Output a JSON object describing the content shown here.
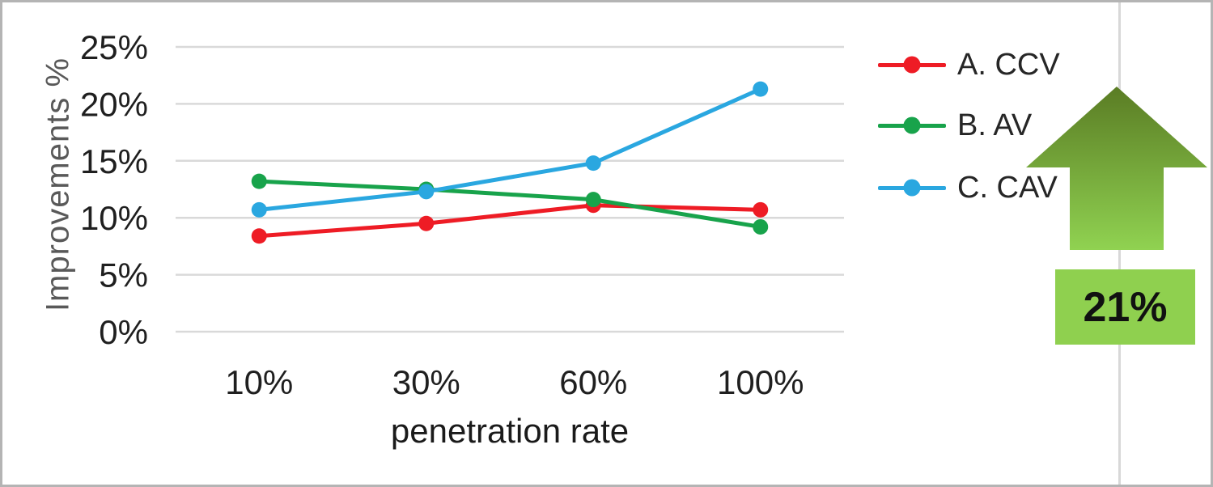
{
  "chart_data": {
    "type": "line",
    "title": "",
    "xlabel": "penetration rate",
    "ylabel": "Improvements %",
    "categories": [
      "10%",
      "30%",
      "60%",
      "100%"
    ],
    "y_ticks": [
      0,
      5,
      10,
      15,
      20,
      25
    ],
    "y_tick_labels": [
      "0%",
      "5%",
      "10%",
      "15%",
      "20%",
      "25%"
    ],
    "ylim": [
      0,
      25
    ],
    "grid": true,
    "legend_position": "right",
    "series": [
      {
        "name": "A. CCV",
        "color": "#ee1c25",
        "values": [
          8.4,
          9.5,
          11.1,
          10.7
        ]
      },
      {
        "name": "B. AV",
        "color": "#18a34b",
        "values": [
          13.2,
          12.5,
          11.6,
          9.2
        ]
      },
      {
        "name": "C. CAV",
        "color": "#2aa7e0",
        "values": [
          10.7,
          12.3,
          14.8,
          21.3
        ]
      }
    ]
  },
  "callout": {
    "value": "21%",
    "badge_color": "#8fd04f",
    "arrow_gradient_top": "#5a7c24",
    "arrow_gradient_bottom": "#90d251"
  },
  "colors": {
    "background": "#ffffff",
    "frame_border": "#b4b4b4",
    "divider": "#d8d8d8",
    "grid": "#d9d9d9",
    "tick_text": "#1f1f1f",
    "y_title_text": "#595959",
    "x_title_text": "#1a1a1a",
    "legend_text": "#262626"
  }
}
